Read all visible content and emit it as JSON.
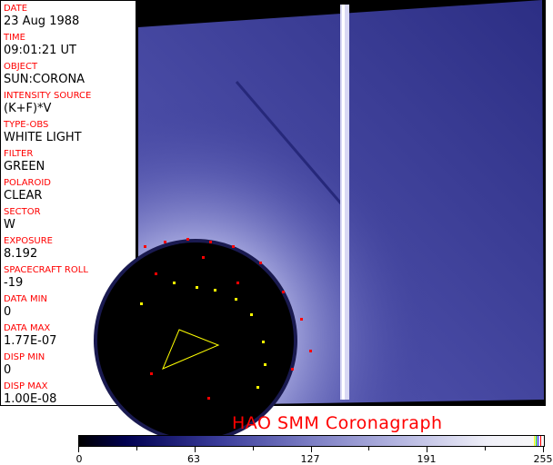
{
  "fields": [
    {
      "label": "DATE",
      "value": "23 Aug 1988"
    },
    {
      "label": "TIME",
      "value": "09:01:21 UT"
    },
    {
      "label": "OBJECT",
      "value": "SUN:CORONA"
    },
    {
      "label": "INTENSITY SOURCE",
      "value": "(K+F)*V"
    },
    {
      "label": "TYPE-OBS",
      "value": "WHITE LIGHT"
    },
    {
      "label": "FILTER",
      "value": "GREEN"
    },
    {
      "label": "POLAROID",
      "value": "CLEAR"
    },
    {
      "label": "SECTOR",
      "value": "W"
    },
    {
      "label": "EXPOSURE",
      "value": "8.192"
    },
    {
      "label": "SPACECRAFT ROLL",
      "value": "-19"
    },
    {
      "label": "DATA MIN",
      "value": "0"
    },
    {
      "label": "DATA MAX",
      "value": "1.77E-07"
    },
    {
      "label": "DISP MIN",
      "value": "0"
    },
    {
      "label": "DISP MAX",
      "value": "1.00E-08"
    }
  ],
  "title": "HAO  SMM Coronagraph",
  "colorbar": {
    "ticks": [
      "0",
      "63",
      "127",
      "191",
      "255"
    ],
    "min": 0,
    "max": 255,
    "colors": {
      "dark": "#000050",
      "mid": "#7c7ec4",
      "light": "#f8f8f8"
    }
  }
}
